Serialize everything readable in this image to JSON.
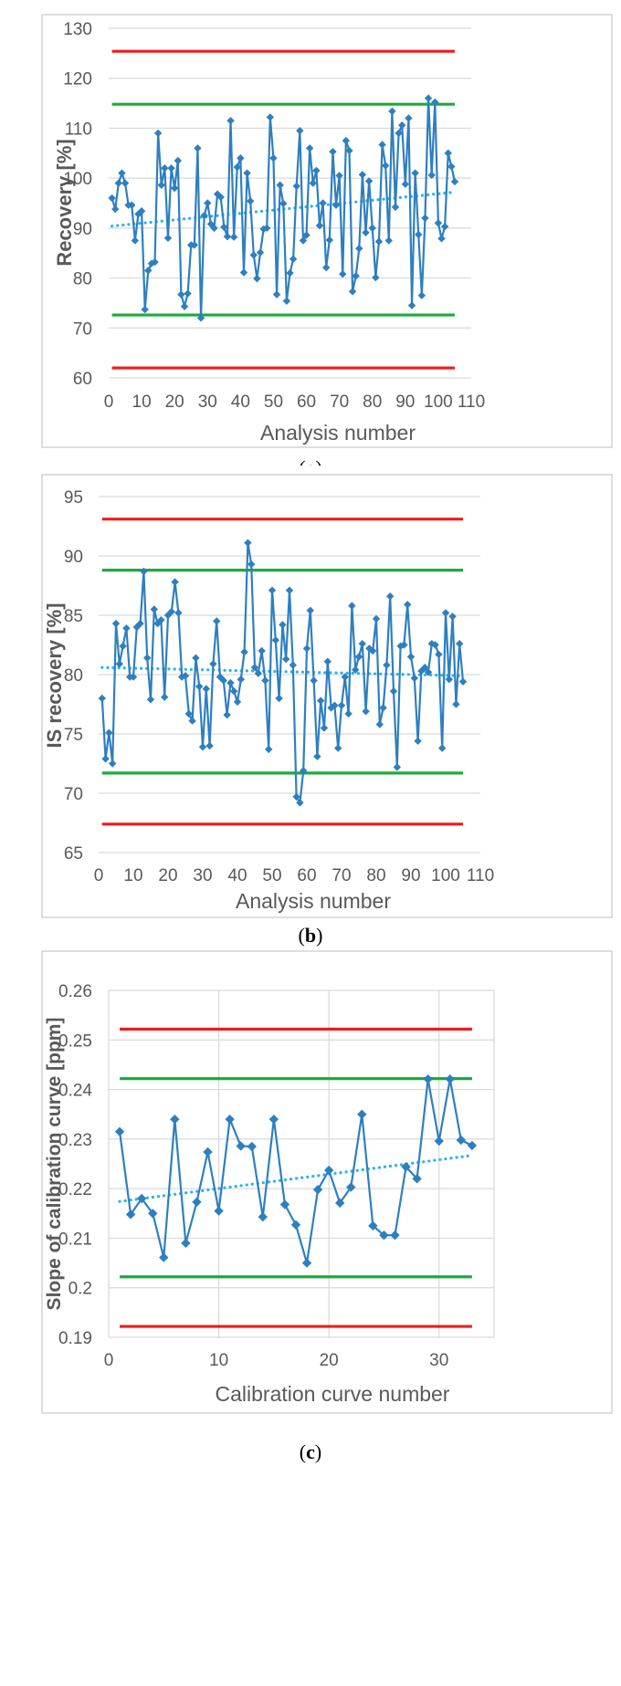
{
  "colors": {
    "series": "#2e7fc0",
    "trend": "#2cb4e8",
    "outer_limit": "#ee1c1c",
    "inner_limit": "#1eaa3c",
    "grid": "#d9d9d9",
    "frame": "#c8c8c8",
    "text": "#595959"
  },
  "chart_data": [
    {
      "id": "a",
      "type": "line",
      "caption_label": "a",
      "xlabel": "Analysis number",
      "ylabel": "Recovery [%]",
      "xlim": [
        0,
        110
      ],
      "ylim": [
        60,
        130
      ],
      "xticks": [
        0,
        10,
        20,
        30,
        40,
        50,
        60,
        70,
        80,
        90,
        100,
        110
      ],
      "yticks": [
        60,
        70,
        80,
        90,
        100,
        110,
        120,
        130
      ],
      "vertical_grid": false,
      "x": [
        1,
        2,
        3,
        4,
        5,
        6,
        7,
        8,
        9,
        10,
        11,
        12,
        13,
        14,
        15,
        16,
        17,
        18,
        19,
        20,
        21,
        22,
        23,
        24,
        25,
        26,
        27,
        28,
        29,
        30,
        31,
        32,
        33,
        34,
        35,
        36,
        37,
        38,
        39,
        40,
        41,
        42,
        43,
        44,
        45,
        46,
        47,
        48,
        49,
        50,
        51,
        52,
        53,
        54,
        55,
        56,
        57,
        58,
        59,
        60,
        61,
        62,
        63,
        64,
        65,
        66,
        67,
        68,
        69,
        70,
        71,
        72,
        73,
        74,
        75,
        76,
        77,
        78,
        79,
        80,
        81,
        82,
        83,
        84,
        85,
        86,
        87,
        88,
        89,
        90,
        91,
        92,
        93,
        94,
        95,
        96,
        97,
        98,
        99,
        100,
        101,
        102,
        103,
        104,
        105
      ],
      "values": [
        96,
        93.8,
        99,
        101,
        99,
        94.6,
        94.6,
        87.5,
        92.8,
        93.4,
        73.7,
        81.5,
        82.9,
        83.2,
        109,
        98.6,
        102,
        88,
        102,
        98,
        103.5,
        76.7,
        74.3,
        76.9,
        86.6,
        86.6,
        106,
        72,
        92.5,
        95,
        90.8,
        90,
        96.8,
        96.2,
        90.2,
        88.3,
        111.5,
        88.2,
        102.2,
        104,
        81.1,
        101,
        95.4,
        84.6,
        79.9,
        85.1,
        89.8,
        90,
        112.2,
        104,
        76.7,
        98.6,
        94.9,
        75.4,
        81,
        83.8,
        98.4,
        109.5,
        87.5,
        88.6,
        106,
        99,
        101.5,
        90.5,
        95,
        82.1,
        87.6,
        105.3,
        94.6,
        100.5,
        80.8,
        107.5,
        105.5,
        77.3,
        80.4,
        85.9,
        100.7,
        89.1,
        99.4,
        90,
        80.1,
        87.3,
        106.7,
        102.5,
        87.5,
        113.4,
        94.2,
        109,
        110.6,
        98.8,
        112,
        74.5,
        101,
        88.7,
        76.5,
        92,
        116,
        100.6,
        115.2,
        91,
        87.9,
        90.3,
        105,
        102.3,
        99.3
      ],
      "upper_outer_limit": 125.4,
      "upper_inner_limit": 114.8,
      "lower_inner_limit": 72.6,
      "lower_outer_limit": 62,
      "trend_start": [
        1,
        90.4
      ],
      "trend_end": [
        105,
        97.2
      ]
    },
    {
      "id": "b",
      "type": "line",
      "caption_label": "b",
      "xlabel": "Analysis number",
      "ylabel": "IS recovery [%]",
      "xlim": [
        0,
        110
      ],
      "ylim": [
        65,
        95
      ],
      "xticks": [
        0,
        10,
        20,
        30,
        40,
        50,
        60,
        70,
        80,
        90,
        100,
        110
      ],
      "yticks": [
        65,
        70,
        75,
        80,
        85,
        90,
        95
      ],
      "vertical_grid": false,
      "x": [
        1,
        2,
        3,
        4,
        5,
        6,
        7,
        8,
        9,
        10,
        11,
        12,
        13,
        14,
        15,
        16,
        17,
        18,
        19,
        20,
        21,
        22,
        23,
        24,
        25,
        26,
        27,
        28,
        29,
        30,
        31,
        32,
        33,
        34,
        35,
        36,
        37,
        38,
        39,
        40,
        41,
        42,
        43,
        44,
        45,
        46,
        47,
        48,
        49,
        50,
        51,
        52,
        53,
        54,
        55,
        56,
        57,
        58,
        59,
        60,
        61,
        62,
        63,
        64,
        65,
        66,
        67,
        68,
        69,
        70,
        71,
        72,
        73,
        74,
        75,
        76,
        77,
        78,
        79,
        80,
        81,
        82,
        83,
        84,
        85,
        86,
        87,
        88,
        89,
        90,
        91,
        92,
        93,
        94,
        95,
        96,
        97,
        98,
        99,
        100,
        101,
        102,
        103,
        104,
        105
      ],
      "values": [
        78,
        72.9,
        75.1,
        72.5,
        84.3,
        80.9,
        82.4,
        83.9,
        79.8,
        79.8,
        84,
        84.3,
        88.7,
        81.4,
        77.9,
        85.5,
        84.3,
        84.6,
        78.1,
        85,
        85.3,
        87.8,
        85.2,
        79.8,
        79.9,
        76.7,
        76.1,
        81.4,
        79,
        73.9,
        78.8,
        74,
        80.9,
        84.5,
        79.8,
        79.5,
        76.6,
        79.3,
        78.6,
        77.7,
        79.6,
        81.9,
        91.1,
        89.3,
        80.6,
        80.1,
        82,
        79.5,
        73.7,
        87.1,
        82.9,
        78,
        84.2,
        81.3,
        87.1,
        80.8,
        69.7,
        69.2,
        71.9,
        82.2,
        85.4,
        79.5,
        73.1,
        77.8,
        75.5,
        81.1,
        77.2,
        77.4,
        73.8,
        77.4,
        79.8,
        76.7,
        85.8,
        80.4,
        81.5,
        82.6,
        76.9,
        82.2,
        82,
        84.7,
        75.8,
        77.2,
        80.8,
        86.6,
        78.6,
        72.2,
        82.4,
        82.5,
        85.9,
        81.5,
        79.7,
        74.4,
        80.3,
        80.6,
        80.2,
        82.6,
        82.5,
        81.7,
        73.8,
        85.2,
        79.6,
        84.9,
        77.5,
        82.6,
        79.4
      ],
      "upper_outer_limit": 93.1,
      "upper_inner_limit": 88.8,
      "lower_inner_limit": 71.7,
      "lower_outer_limit": 67.4,
      "trend_start": [
        1,
        80.6
      ],
      "trend_end": [
        105,
        79.9
      ]
    },
    {
      "id": "c",
      "type": "line",
      "caption_label": "c",
      "xlabel": "Calibration curve number",
      "ylabel": "Slope of calibration curve [ppm]",
      "xlim": [
        0,
        35
      ],
      "ylim": [
        0.19,
        0.26
      ],
      "xticks": [
        0,
        10,
        20,
        30
      ],
      "yticks": [
        0.19,
        0.2,
        0.21,
        0.22,
        0.23,
        0.24,
        0.25,
        0.26
      ],
      "ytick_labels": [
        "0.19",
        "0.2",
        "0.21",
        "0.22",
        "0.23",
        "0.24",
        "0.25",
        "0.26"
      ],
      "vertical_grid": true,
      "x": [
        1,
        2,
        3,
        4,
        5,
        6,
        7,
        8,
        9,
        10,
        11,
        12,
        13,
        14,
        15,
        16,
        17,
        18,
        19,
        20,
        21,
        22,
        23,
        24,
        25,
        26,
        27,
        28,
        29,
        30,
        31,
        32,
        33
      ],
      "values": [
        0.2315,
        0.2148,
        0.218,
        0.215,
        0.2061,
        0.234,
        0.209,
        0.2173,
        0.2274,
        0.2155,
        0.234,
        0.2286,
        0.2285,
        0.2143,
        0.234,
        0.2168,
        0.2127,
        0.205,
        0.2198,
        0.2237,
        0.2171,
        0.2203,
        0.235,
        0.2125,
        0.2106,
        0.2106,
        0.2244,
        0.222,
        0.2421,
        0.2296,
        0.2421,
        0.2298,
        0.2287
      ],
      "upper_outer_limit": 0.2522,
      "upper_inner_limit": 0.2422,
      "lower_inner_limit": 0.2022,
      "lower_outer_limit": 0.1922,
      "trend_start": [
        1,
        0.2174
      ],
      "trend_end": [
        33,
        0.2267
      ]
    }
  ]
}
